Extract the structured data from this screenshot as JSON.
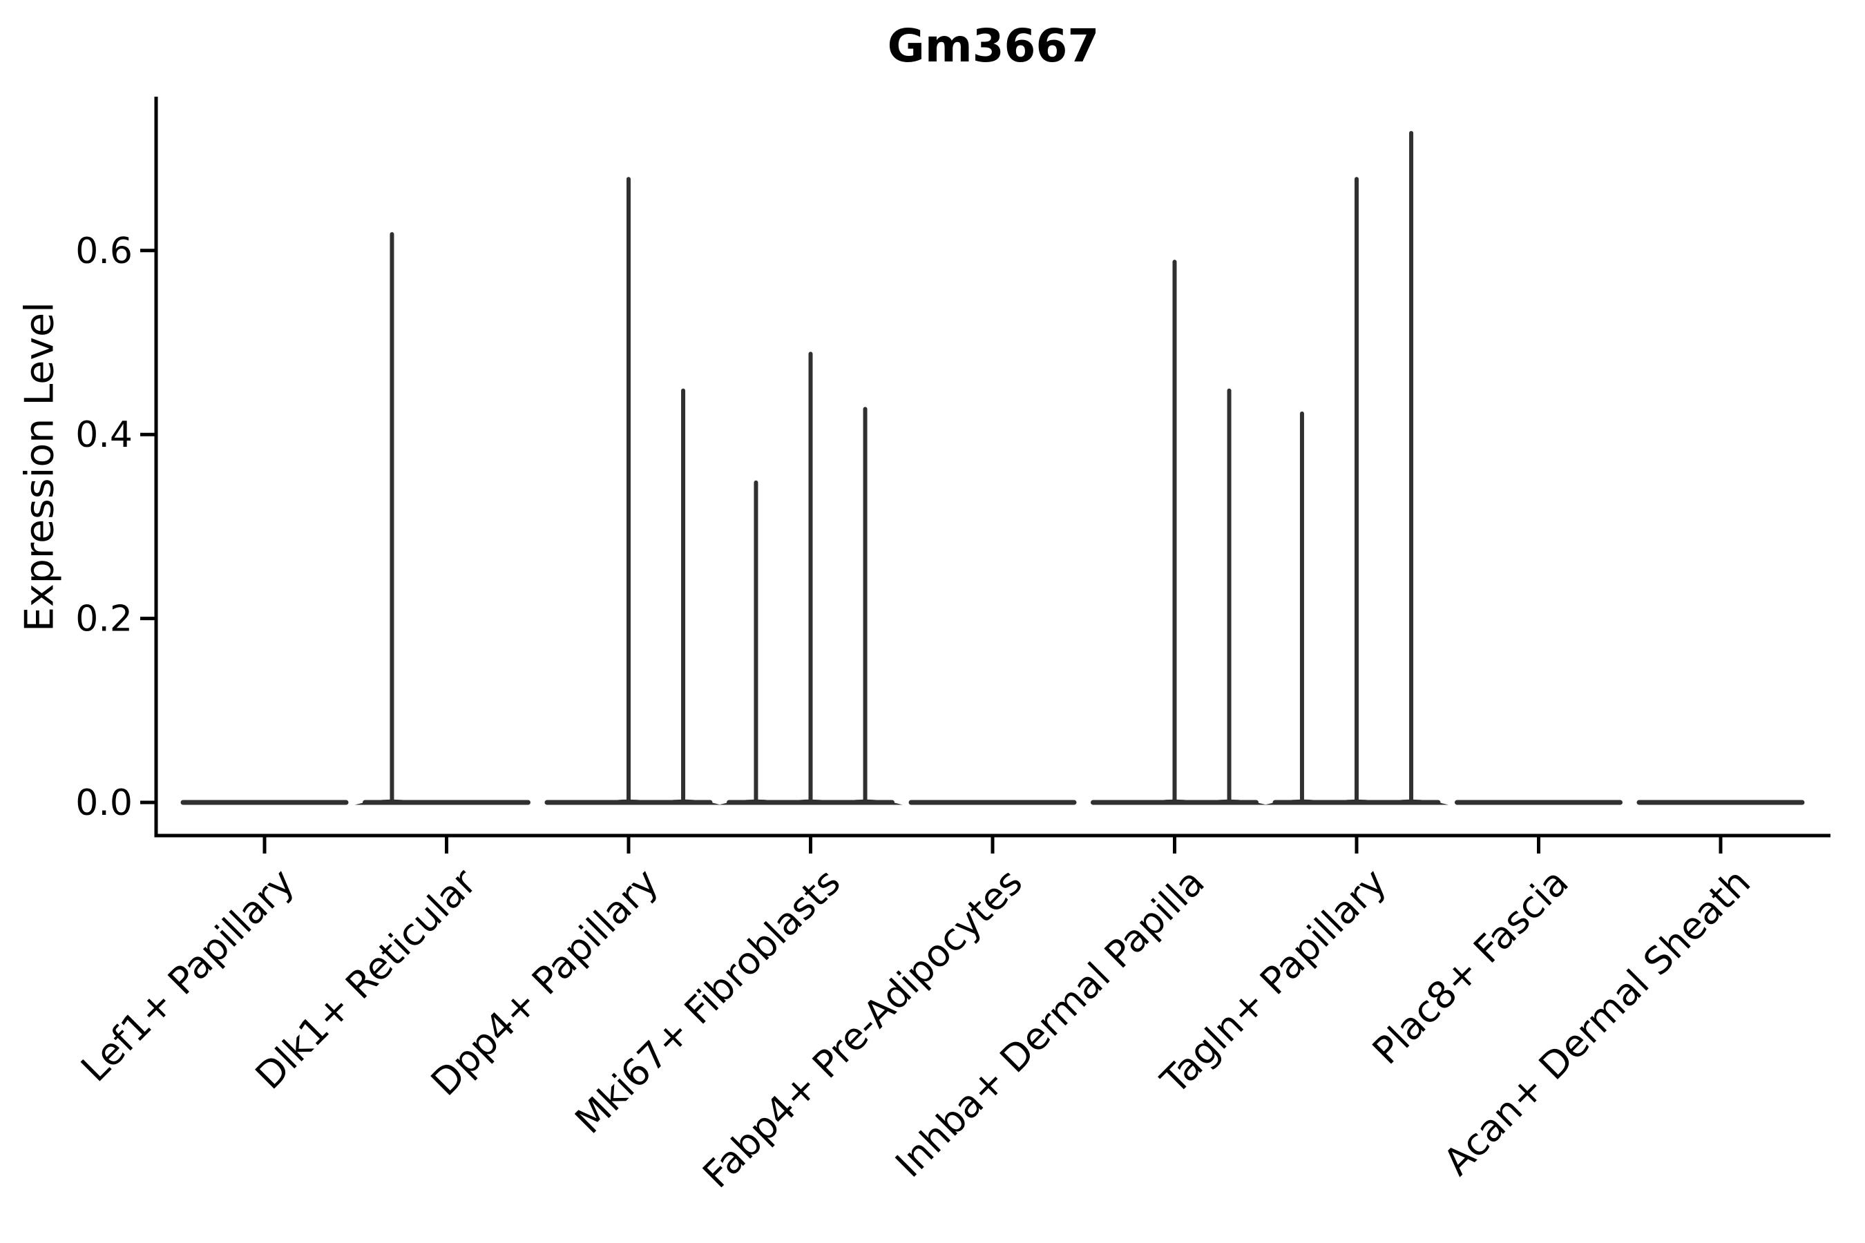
{
  "title": "Gm3667",
  "ylabel": "Expression Level",
  "chart_data": {
    "type": "violin",
    "title": "Gm3667",
    "xlabel": "",
    "ylabel": "Expression Level",
    "legend": null,
    "grid": false,
    "ylim": [
      -0.035,
      0.766
    ],
    "y_ticks": [
      {
        "label": "0.0",
        "value": 0.0
      },
      {
        "label": "0.2",
        "value": 0.2
      },
      {
        "label": "0.4",
        "value": 0.4
      },
      {
        "label": "0.6",
        "value": 0.6
      }
    ],
    "categories": [
      "Lef1+ Papillary",
      "Dlk1+ Reticular",
      "Dpp4+ Papillary",
      "Mki67+ Fibroblasts",
      "Fabp4+ Pre-Adipocytes",
      "Inhba+ Dermal Papilla",
      "Tagln+ Papillary",
      "Plac8+ Fascia",
      "Acan+ Dermal Sheath"
    ],
    "violins": [
      {
        "category": "Lef1+ Papillary",
        "baseline_value": 0.0,
        "spikes": []
      },
      {
        "category": "Dlk1+ Reticular",
        "baseline_value": 0.0,
        "spikes": [
          {
            "offset": -0.3,
            "value": 0.62
          }
        ]
      },
      {
        "category": "Dpp4+ Papillary",
        "baseline_value": 0.0,
        "spikes": [
          {
            "offset": 0.0,
            "value": 0.68
          },
          {
            "offset": 0.3,
            "value": 0.45
          }
        ]
      },
      {
        "category": "Mki67+ Fibroblasts",
        "baseline_value": 0.0,
        "spikes": [
          {
            "offset": -0.3,
            "value": 0.35
          },
          {
            "offset": 0.0,
            "value": 0.49
          },
          {
            "offset": 0.3,
            "value": 0.43
          }
        ]
      },
      {
        "category": "Fabp4+ Pre-Adipocytes",
        "baseline_value": 0.0,
        "spikes": []
      },
      {
        "category": "Inhba+ Dermal Papilla",
        "baseline_value": 0.0,
        "spikes": [
          {
            "offset": 0.0,
            "value": 0.59
          },
          {
            "offset": 0.3,
            "value": 0.45
          }
        ]
      },
      {
        "category": "Tagln+ Papillary",
        "baseline_value": 0.0,
        "spikes": [
          {
            "offset": -0.3,
            "value": 0.425
          },
          {
            "offset": 0.0,
            "value": 0.68
          },
          {
            "offset": 0.3,
            "value": 0.73
          }
        ]
      },
      {
        "category": "Plac8+ Fascia",
        "baseline_value": 0.0,
        "spikes": []
      },
      {
        "category": "Acan+ Dermal Sheath",
        "baseline_value": 0.0,
        "spikes": []
      }
    ],
    "colors": {
      "violin_line": "#303030",
      "axis": "#000000",
      "background": "#ffffff"
    }
  }
}
